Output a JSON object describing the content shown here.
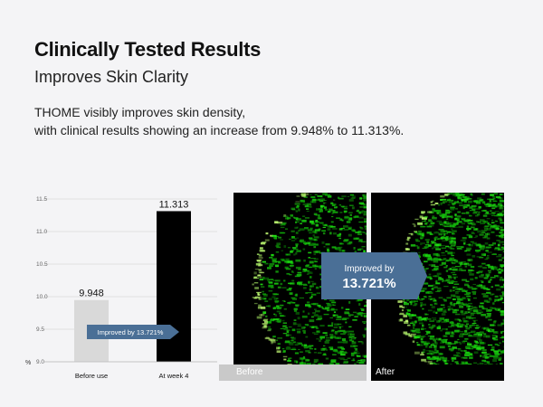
{
  "header": {
    "title": "Clinically Tested Results",
    "subtitle": "Improves Skin Clarity",
    "description_line1": "THOME visibly improves skin density,",
    "description_line2": "with clinical results showing an increase from 9.948% to 11.313%."
  },
  "chart_data": {
    "type": "bar",
    "categories": [
      "Before use",
      "At week 4"
    ],
    "values": [
      9.948,
      11.313
    ],
    "value_labels": [
      "9.948",
      "11.313"
    ],
    "bar_colors": [
      "#d9d9d9",
      "#000000"
    ],
    "ylim": [
      9.0,
      11.5
    ],
    "yticks": [
      "9.0",
      "9.5",
      "10.0",
      "10.5",
      "11.0",
      "11.5"
    ],
    "ylabel": "%",
    "grid": true,
    "annotation": "Improved by 13.721%",
    "annotation_color": "#4a6f96"
  },
  "images": {
    "before_caption": "Before",
    "after_caption": "After",
    "callout_line1": "Improved by",
    "callout_line2": "13.721%",
    "callout_color": "#4a6f96"
  }
}
